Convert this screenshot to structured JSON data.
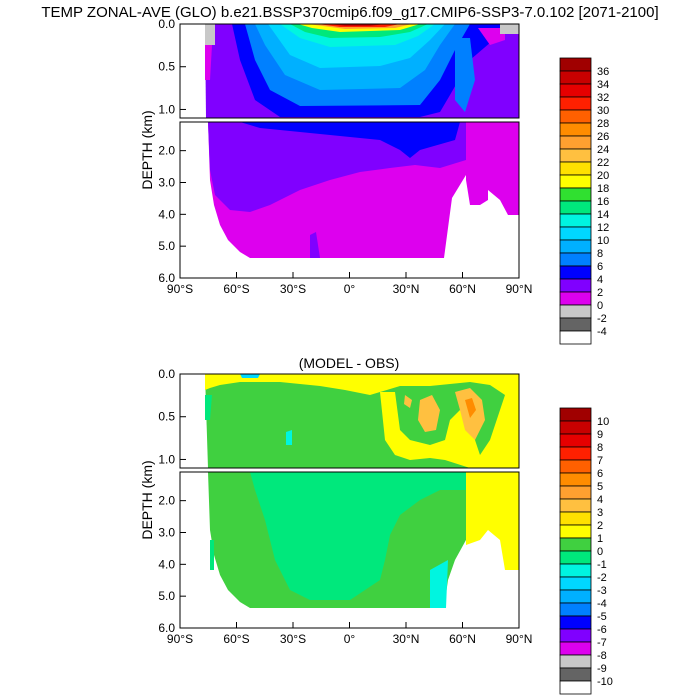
{
  "page_title": "TEMP ZONAL-AVE (GLO) b.e21.BSSP370cmip6.f09_g17.CMIP6-SSP3-7.0.102 [2071-2100]",
  "chart_data": [
    {
      "type": "heatmap",
      "title": "",
      "ylabel": "DEPTH (km)",
      "x_ticks": [
        "90°S",
        "60°S",
        "30°S",
        "0°",
        "30°N",
        "60°N",
        "90°N"
      ],
      "x_range": [
        -90,
        90
      ],
      "y_ticks_upper": [
        "0.0",
        "0.5",
        "1.0"
      ],
      "y_ticks_lower": [
        "2.0",
        "3.0",
        "4.0",
        "5.0",
        "6.0"
      ],
      "y_range_km": [
        0,
        6
      ],
      "colorbar_labels": [
        "36",
        "34",
        "32",
        "30",
        "28",
        "26",
        "24",
        "22",
        "20",
        "18",
        "16",
        "14",
        "12",
        "10",
        "8",
        "6",
        "4",
        "2",
        "0",
        "-2",
        "-4"
      ],
      "colorbar_colors": [
        "#a00000",
        "#c80000",
        "#e60000",
        "#ff2000",
        "#ff6000",
        "#ff8c00",
        "#ffa030",
        "#ffc040",
        "#ffe000",
        "#ffff00",
        "#30e030",
        "#00e87c",
        "#00f5e0",
        "#00d8ff",
        "#00b0ff",
        "#0080ff",
        "#0000ff",
        "#8000ff",
        "#dd00ee",
        "#c8c8c8",
        "#646464",
        "#ffffff"
      ]
    },
    {
      "type": "heatmap",
      "title": "(MODEL - OBS)",
      "ylabel": "DEPTH (km)",
      "x_ticks": [
        "90°S",
        "60°S",
        "30°S",
        "0°",
        "30°N",
        "60°N",
        "90°N"
      ],
      "x_range": [
        -90,
        90
      ],
      "y_ticks_upper": [
        "0.0",
        "0.5",
        "1.0"
      ],
      "y_ticks_lower": [
        "2.0",
        "3.0",
        "4.0",
        "5.0",
        "6.0"
      ],
      "y_range_km": [
        0,
        6
      ],
      "colorbar_labels": [
        "10",
        "9",
        "8",
        "7",
        "6",
        "5",
        "4",
        "3",
        "2",
        "1",
        "0",
        "-1",
        "-2",
        "-3",
        "-4",
        "-5",
        "-6",
        "-7",
        "-8",
        "-9",
        "-10"
      ],
      "colorbar_colors": [
        "#a00000",
        "#c80000",
        "#e60000",
        "#ff2000",
        "#ff6000",
        "#ff8c00",
        "#ffa030",
        "#ffc040",
        "#ffe000",
        "#ffff00",
        "#40d040",
        "#00e87c",
        "#00f5e0",
        "#00d8ff",
        "#00b0ff",
        "#0080ff",
        "#0000ff",
        "#8000ff",
        "#dd00ee",
        "#c8c8c8",
        "#646464",
        "#ffffff"
      ]
    }
  ]
}
